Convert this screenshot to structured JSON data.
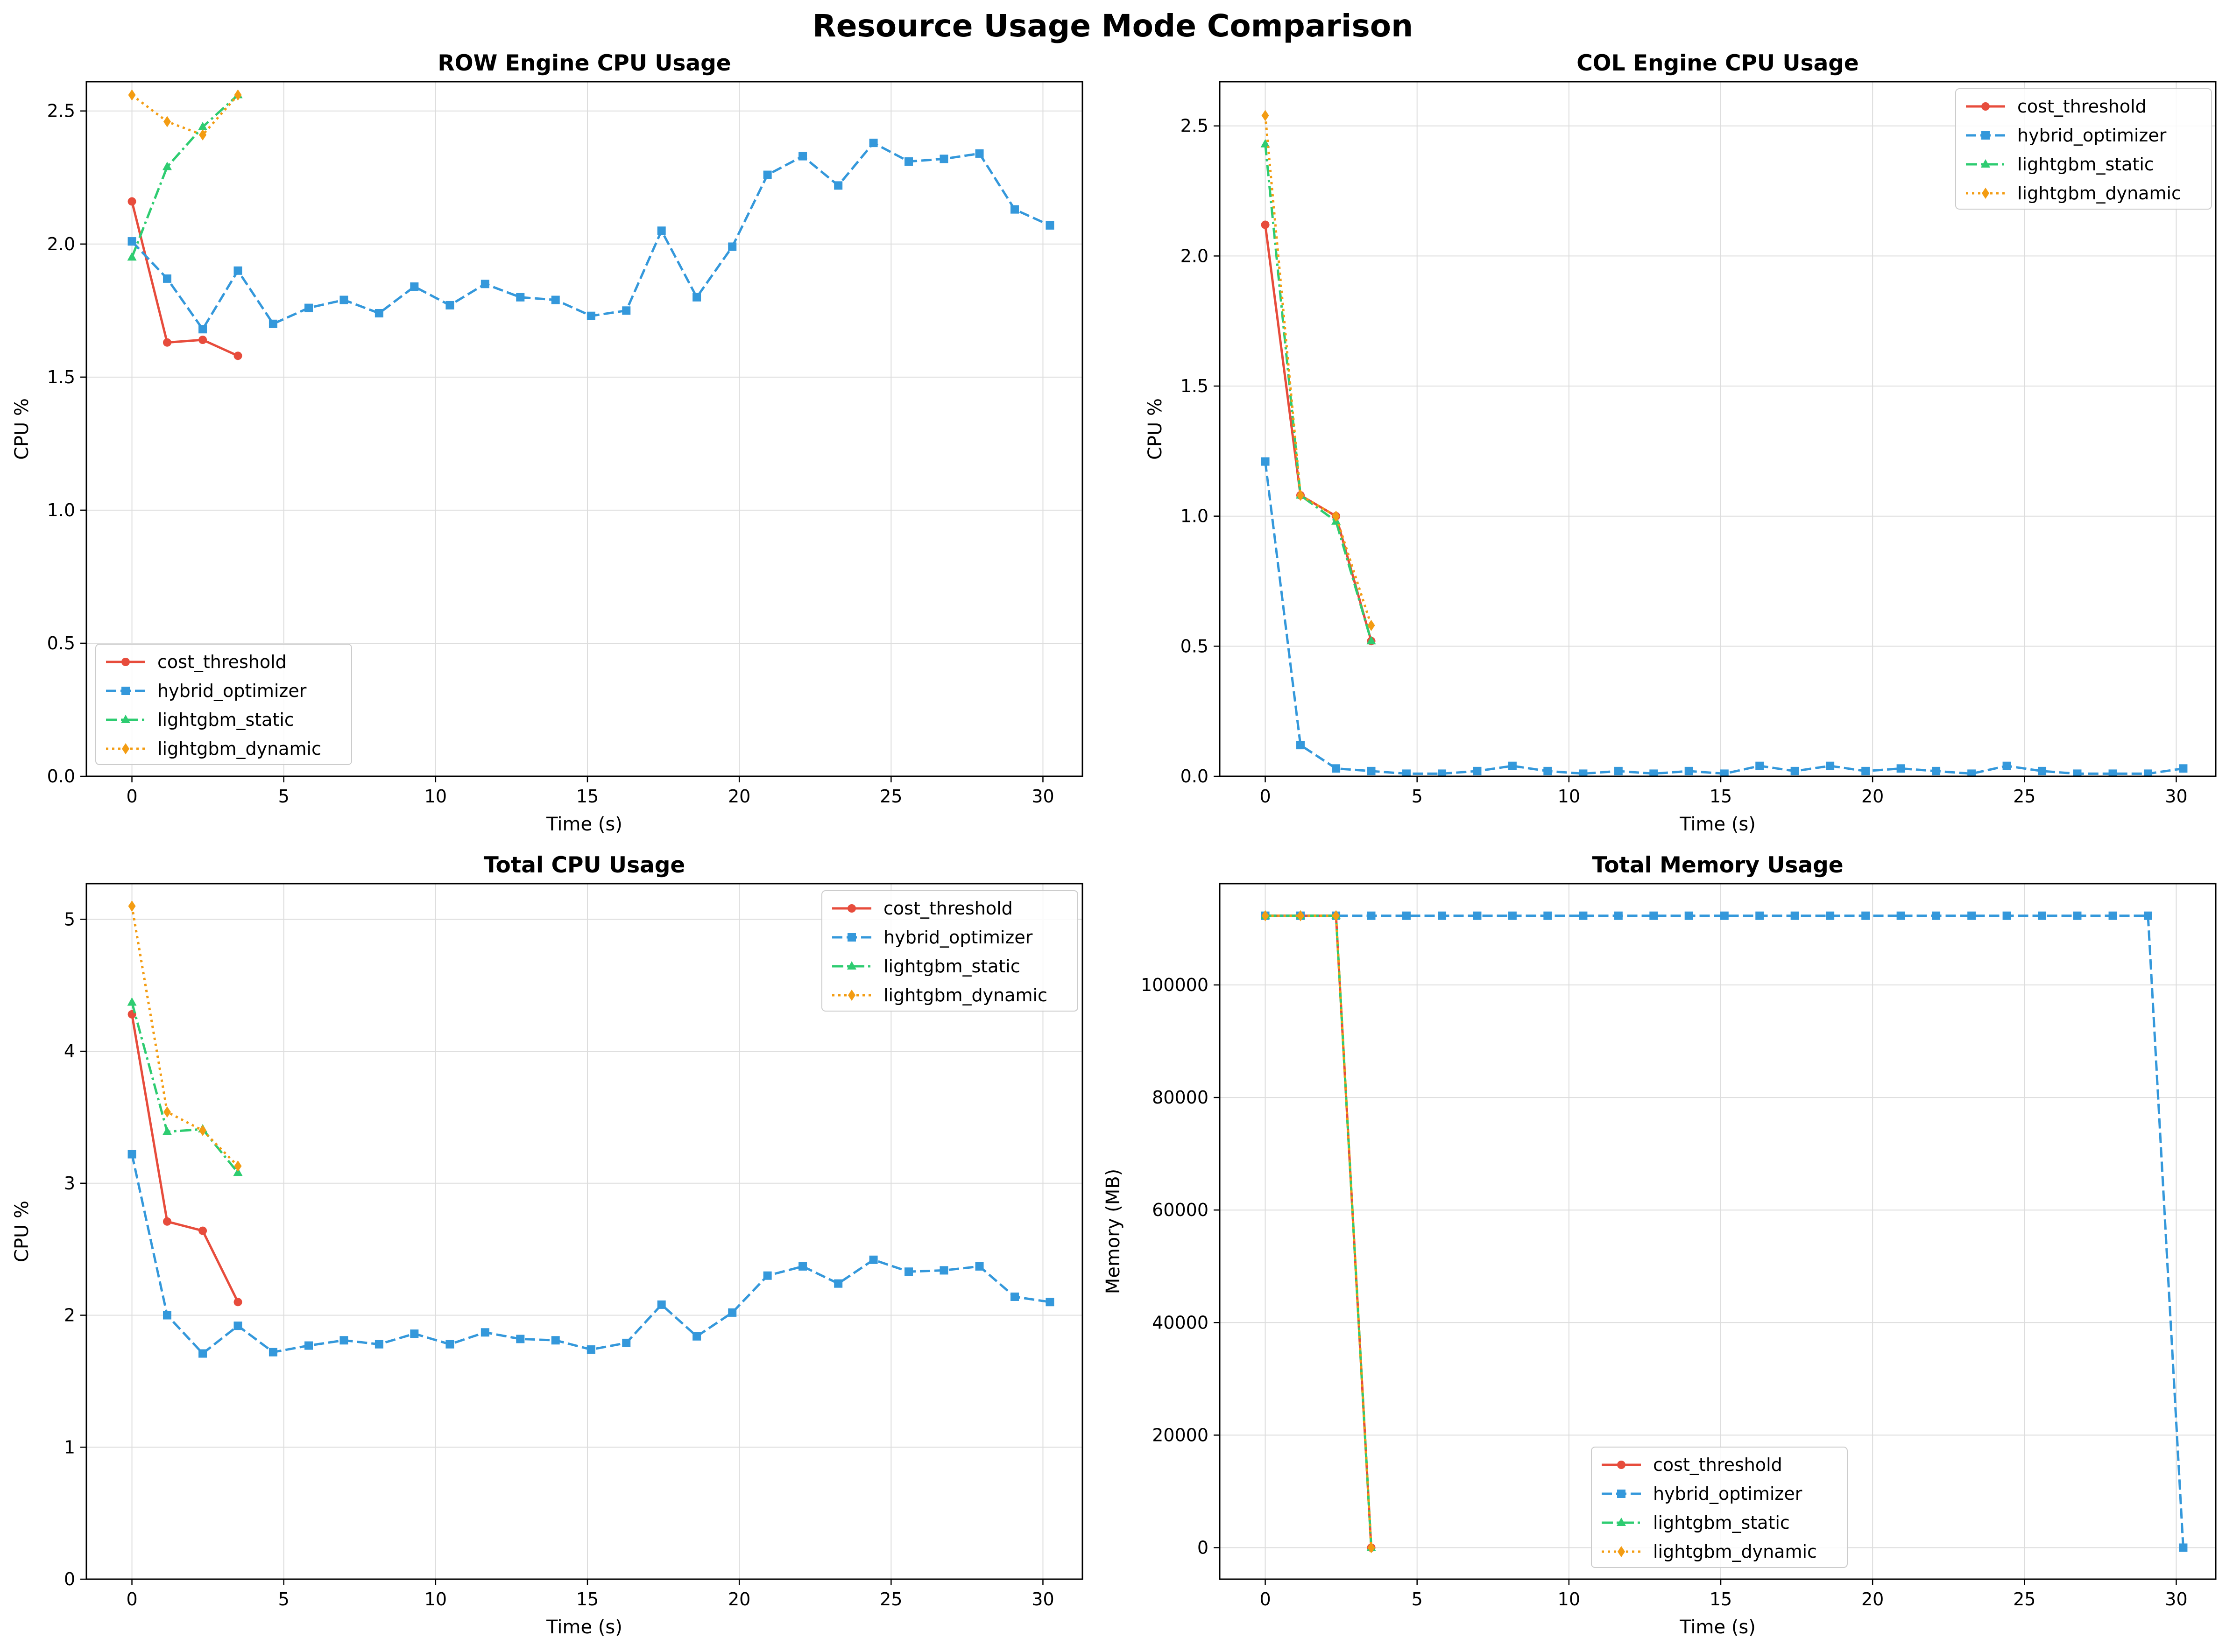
{
  "figure": {
    "title": "Resource Usage Mode Comparison"
  },
  "series_styles": [
    {
      "name": "cost_threshold",
      "color": "#e74c3c",
      "dash": "solid",
      "marker": "circle"
    },
    {
      "name": "hybrid_optimizer",
      "color": "#3498db",
      "dash": "dashed",
      "marker": "square"
    },
    {
      "name": "lightgbm_static",
      "color": "#2ecc71",
      "dash": "dashdot",
      "marker": "triangle"
    },
    {
      "name": "lightgbm_dynamic",
      "color": "#f39c12",
      "dash": "dotted",
      "marker": "diamond"
    }
  ],
  "chart_data": [
    {
      "type": "line",
      "title": "ROW Engine CPU Usage",
      "xlabel": "Time (s)",
      "ylabel": "CPU %",
      "xlim": [
        -1.5,
        31.3
      ],
      "ylim": [
        0,
        2.61
      ],
      "xticks": [
        0,
        5,
        10,
        15,
        20,
        25,
        30
      ],
      "yticks": [
        0.0,
        0.5,
        1.0,
        1.5,
        2.0,
        2.5
      ],
      "ytick_labels": [
        "0.0",
        "0.5",
        "1.0",
        "1.5",
        "2.0",
        "2.5"
      ],
      "grid": true,
      "legend_position": "lower-left",
      "series": [
        {
          "name": "cost_threshold",
          "x": [
            0,
            1.16,
            2.33,
            3.49
          ],
          "y": [
            2.16,
            1.63,
            1.64,
            1.58
          ]
        },
        {
          "name": "hybrid_optimizer",
          "x": [
            0,
            1.16,
            2.33,
            3.49,
            4.65,
            5.82,
            6.98,
            8.14,
            9.3,
            10.47,
            11.63,
            12.79,
            13.95,
            15.12,
            16.28,
            17.44,
            18.6,
            19.77,
            20.93,
            22.09,
            23.26,
            24.42,
            25.58,
            26.74,
            27.91,
            29.07,
            30.23
          ],
          "y": [
            2.01,
            1.87,
            1.68,
            1.9,
            1.7,
            1.76,
            1.79,
            1.74,
            1.84,
            1.77,
            1.85,
            1.8,
            1.79,
            1.73,
            1.75,
            2.05,
            1.8,
            1.99,
            2.26,
            2.33,
            2.22,
            2.38,
            2.31,
            2.32,
            2.34,
            2.13,
            2.07
          ]
        },
        {
          "name": "lightgbm_static",
          "x": [
            0,
            1.16,
            2.33,
            3.49
          ],
          "y": [
            1.95,
            2.29,
            2.44,
            2.56
          ]
        },
        {
          "name": "lightgbm_dynamic",
          "x": [
            0,
            1.16,
            2.33,
            3.49
          ],
          "y": [
            2.56,
            2.46,
            2.41,
            2.56
          ]
        }
      ]
    },
    {
      "type": "line",
      "title": "COL Engine CPU Usage",
      "xlabel": "Time (s)",
      "ylabel": "CPU %",
      "xlim": [
        -1.5,
        31.3
      ],
      "ylim": [
        0,
        2.67
      ],
      "xticks": [
        0,
        5,
        10,
        15,
        20,
        25,
        30
      ],
      "yticks": [
        0.0,
        0.5,
        1.0,
        1.5,
        2.0,
        2.5
      ],
      "ytick_labels": [
        "0.0",
        "0.5",
        "1.0",
        "1.5",
        "2.0",
        "2.5"
      ],
      "grid": true,
      "legend_position": "upper-right",
      "series": [
        {
          "name": "cost_threshold",
          "x": [
            0,
            1.16,
            2.33,
            3.49
          ],
          "y": [
            2.12,
            1.08,
            1.0,
            0.52
          ]
        },
        {
          "name": "hybrid_optimizer",
          "x": [
            0,
            1.16,
            2.33,
            3.49,
            4.65,
            5.82,
            6.98,
            8.14,
            9.3,
            10.47,
            11.63,
            12.79,
            13.95,
            15.12,
            16.28,
            17.44,
            18.6,
            19.77,
            20.93,
            22.09,
            23.26,
            24.42,
            25.58,
            26.74,
            27.91,
            29.07,
            30.23
          ],
          "y": [
            1.21,
            0.12,
            0.03,
            0.02,
            0.01,
            0.01,
            0.02,
            0.04,
            0.02,
            0.01,
            0.02,
            0.01,
            0.02,
            0.01,
            0.04,
            0.02,
            0.04,
            0.02,
            0.03,
            0.02,
            0.01,
            0.04,
            0.02,
            0.01,
            0.01,
            0.01,
            0.03
          ]
        },
        {
          "name": "lightgbm_static",
          "x": [
            0,
            1.16,
            2.33,
            3.49
          ],
          "y": [
            2.43,
            1.08,
            0.98,
            0.52
          ]
        },
        {
          "name": "lightgbm_dynamic",
          "x": [
            0,
            1.16,
            2.33,
            3.49
          ],
          "y": [
            2.54,
            1.08,
            1.0,
            0.58
          ]
        }
      ]
    },
    {
      "type": "line",
      "title": "Total CPU Usage",
      "xlabel": "Time (s)",
      "ylabel": "CPU %",
      "xlim": [
        -1.5,
        31.3
      ],
      "ylim": [
        0,
        5.27
      ],
      "xticks": [
        0,
        5,
        10,
        15,
        20,
        25,
        30
      ],
      "yticks": [
        0,
        1,
        2,
        3,
        4,
        5
      ],
      "ytick_labels": [
        "0",
        "1",
        "2",
        "3",
        "4",
        "5"
      ],
      "grid": true,
      "legend_position": "upper-right",
      "series": [
        {
          "name": "cost_threshold",
          "x": [
            0,
            1.16,
            2.33,
            3.49
          ],
          "y": [
            4.28,
            2.71,
            2.64,
            2.1
          ]
        },
        {
          "name": "hybrid_optimizer",
          "x": [
            0,
            1.16,
            2.33,
            3.49,
            4.65,
            5.82,
            6.98,
            8.14,
            9.3,
            10.47,
            11.63,
            12.79,
            13.95,
            15.12,
            16.28,
            17.44,
            18.6,
            19.77,
            20.93,
            22.09,
            23.26,
            24.42,
            25.58,
            26.74,
            27.91,
            29.07,
            30.23
          ],
          "y": [
            3.22,
            2.0,
            1.71,
            1.92,
            1.72,
            1.77,
            1.81,
            1.78,
            1.86,
            1.78,
            1.87,
            1.82,
            1.81,
            1.74,
            1.79,
            2.08,
            1.84,
            2.02,
            2.3,
            2.37,
            2.24,
            2.42,
            2.33,
            2.34,
            2.37,
            2.14,
            2.1
          ]
        },
        {
          "name": "lightgbm_static",
          "x": [
            0,
            1.16,
            2.33,
            3.49
          ],
          "y": [
            4.37,
            3.39,
            3.41,
            3.08
          ]
        },
        {
          "name": "lightgbm_dynamic",
          "x": [
            0,
            1.16,
            2.33,
            3.49
          ],
          "y": [
            5.1,
            3.54,
            3.4,
            3.13
          ]
        }
      ]
    },
    {
      "type": "line",
      "title": "Total Memory Usage",
      "xlabel": "Time (s)",
      "ylabel": "Memory (MB)",
      "xlim": [
        -1.5,
        31.3
      ],
      "ylim": [
        -5600,
        118000
      ],
      "xticks": [
        0,
        5,
        10,
        15,
        20,
        25,
        30
      ],
      "yticks": [
        0,
        20000,
        40000,
        60000,
        80000,
        100000
      ],
      "ytick_labels": [
        "0",
        "20000",
        "40000",
        "60000",
        "80000",
        "100000"
      ],
      "grid": true,
      "legend_position": "lower-center",
      "series": [
        {
          "name": "cost_threshold",
          "x": [
            0,
            1.16,
            2.33,
            3.49
          ],
          "y": [
            112300,
            112300,
            112300,
            0
          ]
        },
        {
          "name": "hybrid_optimizer",
          "x": [
            0,
            1.16,
            2.33,
            3.49,
            4.65,
            5.82,
            6.98,
            8.14,
            9.3,
            10.47,
            11.63,
            12.79,
            13.95,
            15.12,
            16.28,
            17.44,
            18.6,
            19.77,
            20.93,
            22.09,
            23.26,
            24.42,
            25.58,
            26.74,
            27.91,
            29.07,
            30.23
          ],
          "y": [
            112300,
            112300,
            112300,
            112300,
            112300,
            112300,
            112300,
            112300,
            112300,
            112300,
            112300,
            112300,
            112300,
            112300,
            112300,
            112300,
            112300,
            112300,
            112300,
            112300,
            112300,
            112300,
            112300,
            112300,
            112300,
            112300,
            0
          ]
        },
        {
          "name": "lightgbm_static",
          "x": [
            0,
            1.16,
            2.33,
            3.49
          ],
          "y": [
            112300,
            112300,
            112300,
            0
          ]
        },
        {
          "name": "lightgbm_dynamic",
          "x": [
            0,
            1.16,
            2.33,
            3.49
          ],
          "y": [
            112300,
            112300,
            112300,
            0
          ]
        }
      ]
    }
  ]
}
